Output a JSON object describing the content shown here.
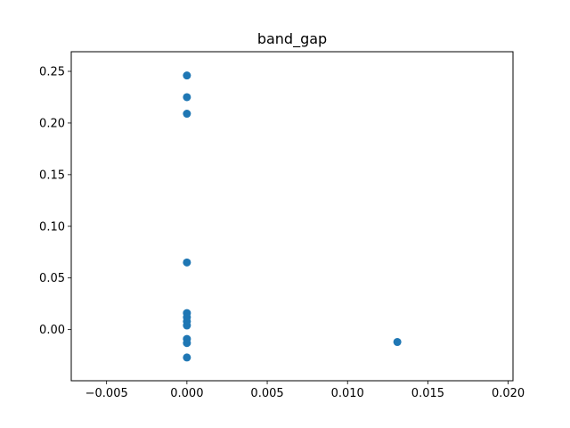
{
  "chart_data": {
    "type": "scatter",
    "title": "band_gap",
    "xlabel": "",
    "ylabel": "",
    "xlim": [
      -0.0072,
      0.0203
    ],
    "ylim": [
      -0.0495,
      0.269
    ],
    "x_ticks": [
      -0.005,
      0.0,
      0.005,
      0.01,
      0.015,
      0.02
    ],
    "x_tick_labels": [
      "−0.005",
      "0.000",
      "0.005",
      "0.010",
      "0.015",
      "0.020"
    ],
    "y_ticks": [
      0.0,
      0.05,
      0.1,
      0.15,
      0.2,
      0.25
    ],
    "y_tick_labels": [
      "0.00",
      "0.05",
      "0.10",
      "0.15",
      "0.20",
      "0.25"
    ],
    "grid": false,
    "marker_color": "#1f77b4",
    "points": [
      {
        "x": 0.0,
        "y": 0.246
      },
      {
        "x": 0.0,
        "y": 0.225
      },
      {
        "x": 0.0,
        "y": 0.209
      },
      {
        "x": 0.0,
        "y": 0.065
      },
      {
        "x": 0.0,
        "y": 0.016
      },
      {
        "x": 0.0,
        "y": 0.012
      },
      {
        "x": 0.0,
        "y": 0.008
      },
      {
        "x": 0.0,
        "y": 0.004
      },
      {
        "x": 0.0,
        "y": -0.009
      },
      {
        "x": 0.0,
        "y": -0.013
      },
      {
        "x": 0.0,
        "y": -0.027
      },
      {
        "x": 0.0131,
        "y": -0.012
      }
    ]
  }
}
